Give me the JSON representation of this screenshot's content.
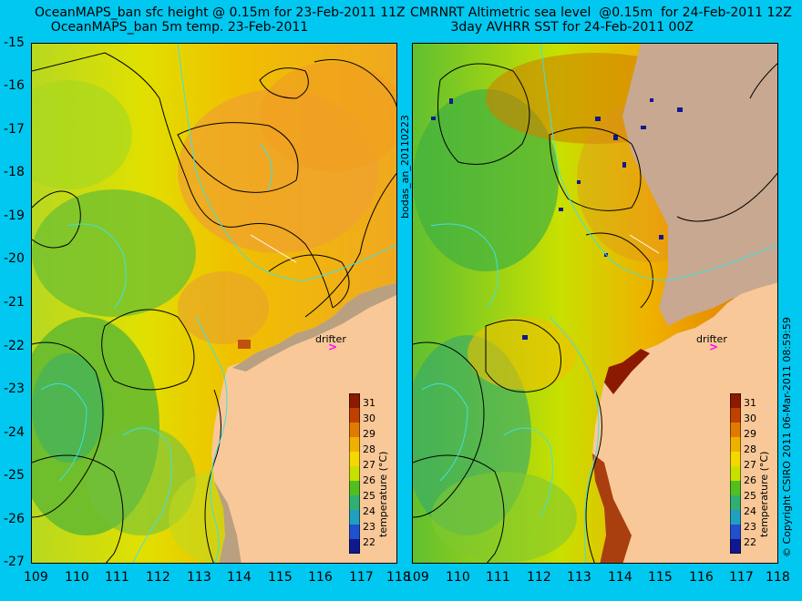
{
  "left_title": "OceanMAPS_ban sfc height @ 0.15m for 23-Feb-2011 11Z\n    OceanMAPS_ban 5m temp. 23-Feb-2011",
  "right_title": "CMRNRT Altimetric sea level  @0.15m  for 24-Feb-2011 12Z\n          3day AVHRR SST for 24-Feb-2011 00Z",
  "y_ticks": [
    "-15",
    "-16",
    "-17",
    "-18",
    "-19",
    "-20",
    "-21",
    "-22",
    "-23",
    "-24",
    "-25",
    "-26",
    "-27"
  ],
  "x_ticks": [
    "109",
    "110",
    "111",
    "112",
    "113",
    "114",
    "115",
    "116",
    "117",
    "118"
  ],
  "colorbar": {
    "title": "temperature (°C)",
    "ticks": [
      "31",
      "30",
      "29",
      "28",
      "27",
      "26",
      "25",
      "24",
      "23",
      "22"
    ],
    "colors": [
      "#8b1a00",
      "#c04000",
      "#e07a00",
      "#f0b000",
      "#f5d800",
      "#c8e000",
      "#50c020",
      "#30b070",
      "#20a0c0",
      "#2050d0",
      "#101890"
    ]
  },
  "drifter_label": "drifter",
  "drifter_symbol": ">",
  "side_label_left": "bodas_an_20110223",
  "side_label_right": "© Copyright CSIRO 2011   06-Mar-2011 08:59:59",
  "colors": {
    "background": "#00c8f0",
    "land": "#f8c898",
    "contour": "#000000",
    "bathy_contour": "#40e0e0",
    "drifter": "#ff00ff"
  }
}
